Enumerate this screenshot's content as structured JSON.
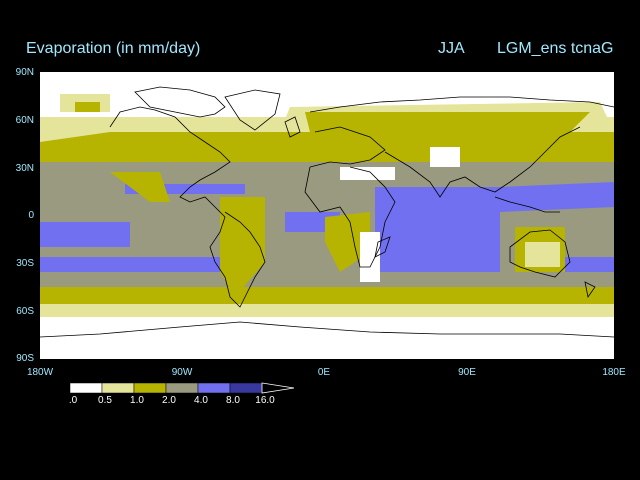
{
  "title": {
    "variable": "Evaporation (in mm/day)",
    "season": "JJA",
    "experiment": "LGM_ens tcnaG"
  },
  "lat_labels": [
    "90N",
    "60N",
    "30N",
    "0",
    "30S",
    "60S",
    "90S"
  ],
  "lon_labels": [
    "180W",
    "90W",
    "0E",
    "90E",
    "180E"
  ],
  "colorbar": {
    "labels": [
      ".0",
      "0.5",
      "1.0",
      "2.0",
      "4.0",
      "8.0",
      "16.0"
    ],
    "colors": [
      "#ffffff",
      "#e4e49a",
      "#b6b400",
      "#9a9a80",
      "#7070f0",
      "#3838a0"
    ]
  },
  "colors": {
    "background": "#000000",
    "title_text": "#9fe8ff",
    "coast": "#000000",
    "map_base": "#ffffff"
  }
}
